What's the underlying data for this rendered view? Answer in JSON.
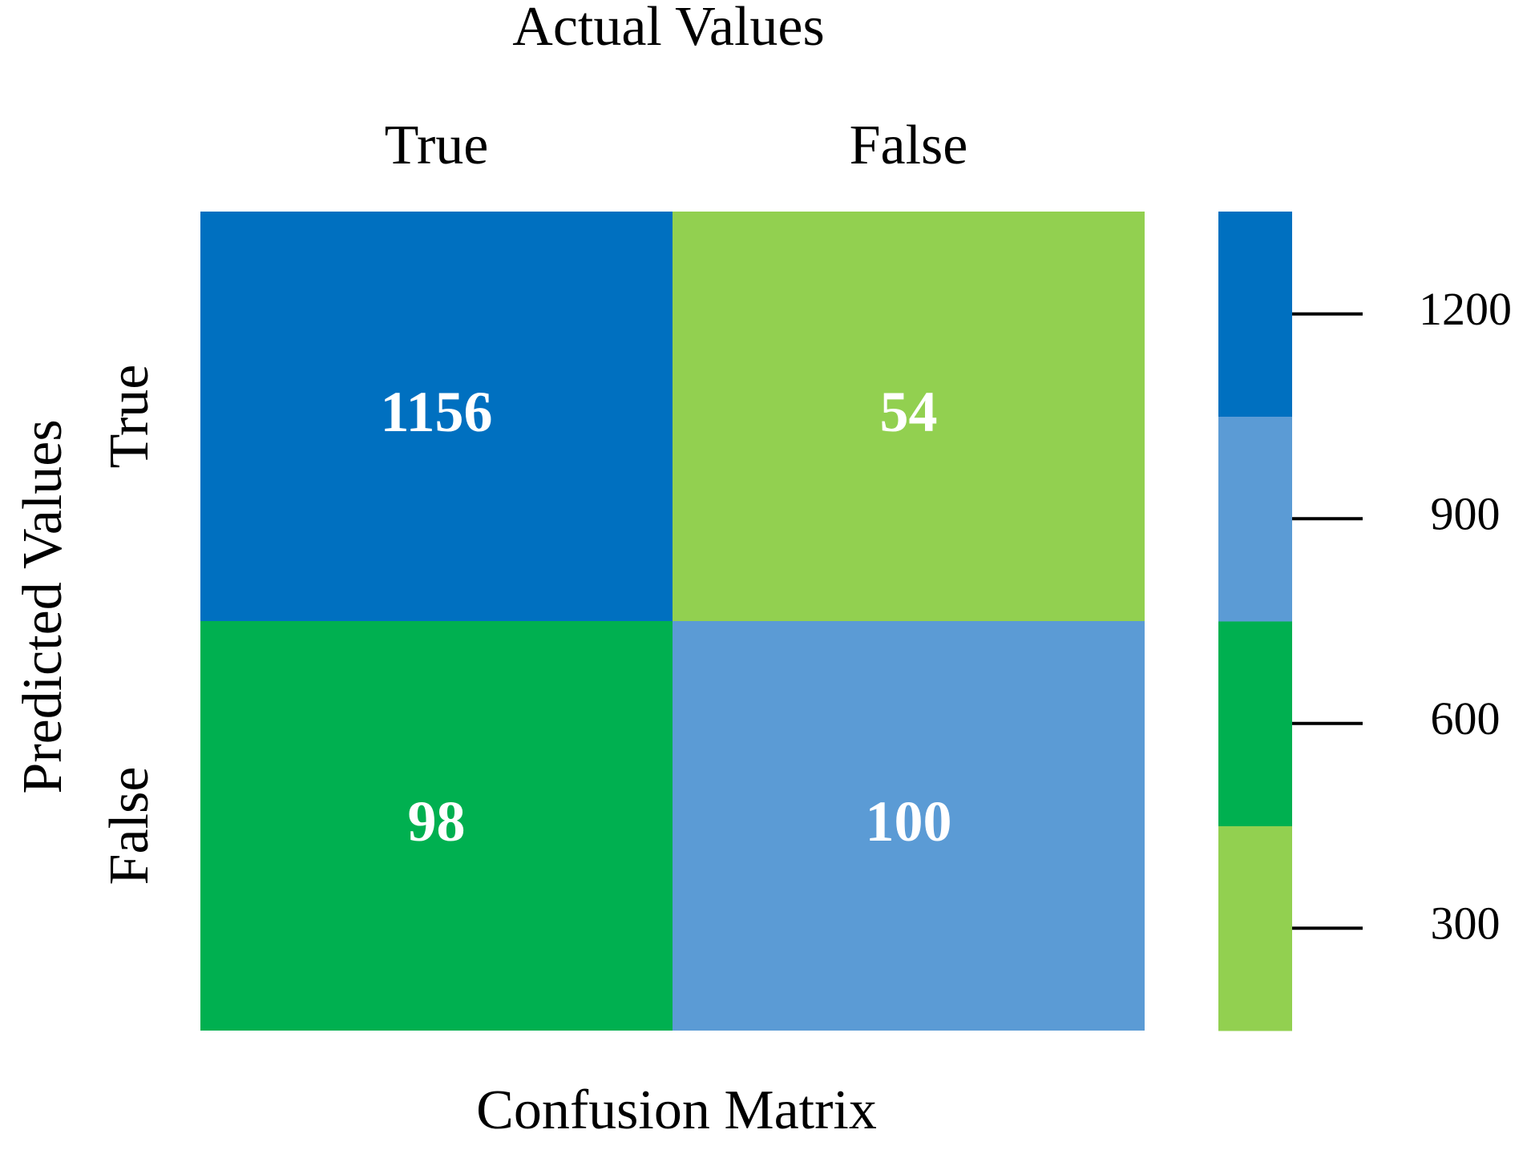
{
  "chart_data": {
    "type": "heatmap",
    "title": "Actual Values",
    "xlabel": "Confusion Matrix",
    "ylabel": "Predicted Values",
    "x_categories": [
      "True",
      "False"
    ],
    "y_categories": [
      "True",
      "False"
    ],
    "values": [
      [
        1156,
        54
      ],
      [
        98,
        100
      ]
    ],
    "cell_colors": [
      [
        "#0070c0",
        "#92d050"
      ],
      [
        "#00b050",
        "#5b9bd5"
      ]
    ],
    "value_color": "#ffffff",
    "colorbar": {
      "colors": [
        "#92d050",
        "#00b050",
        "#5b9bd5",
        "#0070c0"
      ],
      "zlim": [
        150,
        1350
      ],
      "ticks": [
        300,
        600,
        900,
        1200
      ]
    }
  }
}
